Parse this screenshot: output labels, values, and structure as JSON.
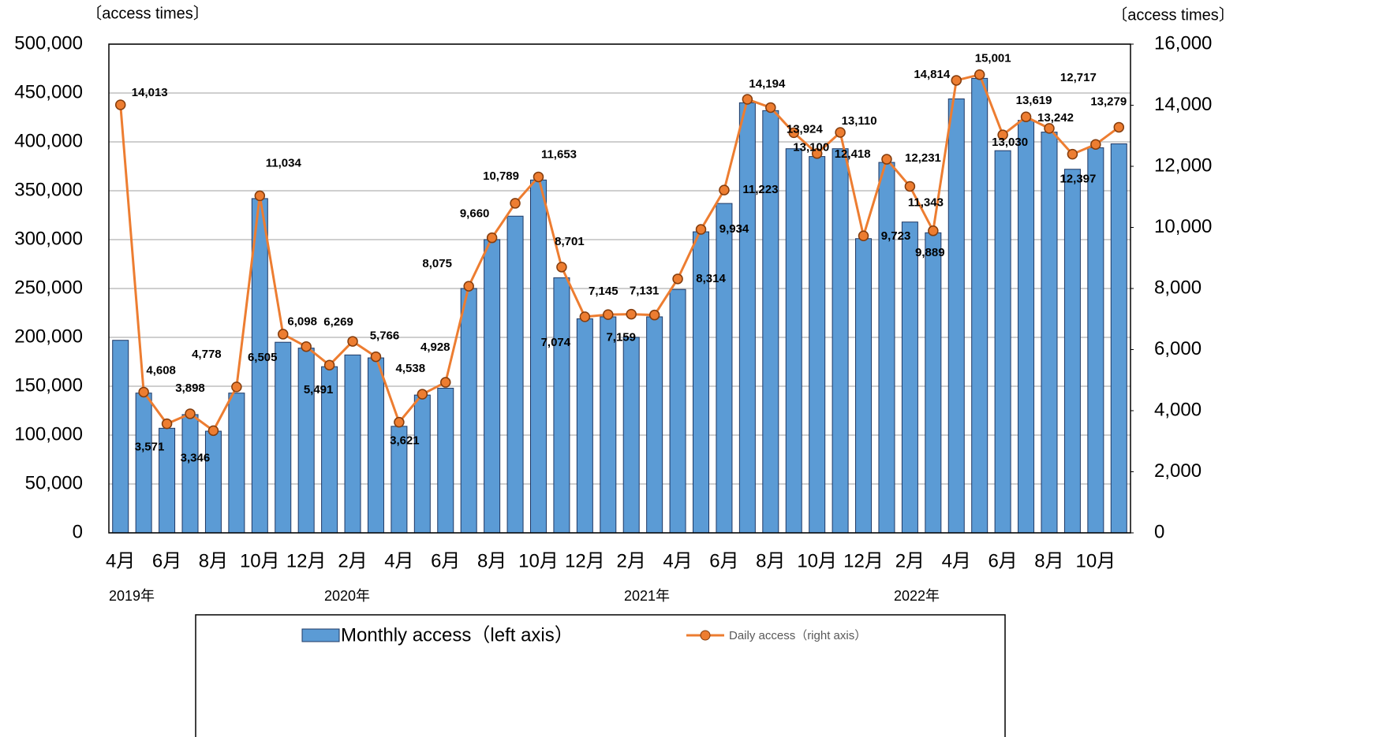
{
  "chart_data": {
    "type": "combo",
    "y_label": "〔access times〕",
    "y2_label": "〔access times〕",
    "categories": [
      "4月",
      null,
      "6月",
      null,
      "8月",
      null,
      "10月",
      null,
      "12月",
      null,
      "2月",
      null,
      "4月",
      null,
      "6月",
      null,
      "8月",
      null,
      "10月",
      null,
      "12月",
      null,
      "2月",
      null,
      "4月",
      null,
      "6月",
      null,
      "8月",
      null,
      "10月",
      null,
      "12月",
      null,
      "2月",
      null,
      "4月",
      null,
      "6月",
      null,
      "8月",
      null,
      "10月",
      null
    ],
    "year_labels": [
      "2019年",
      "2020年",
      "2021年",
      "2022年"
    ],
    "ylim": [
      0,
      500000
    ],
    "yticks": [
      0,
      {
        "value": 50000,
        "label": "50,000"
      },
      {
        "value": 100000,
        "label": "100,000"
      },
      {
        "value": 150000,
        "label": "150,000"
      },
      {
        "value": 200000,
        "label": "200,000"
      },
      {
        "value": 250000,
        "label": "250,000"
      },
      {
        "value": 300000,
        "label": "300,000"
      },
      {
        "value": 350000,
        "label": "350,000"
      },
      {
        "value": 400000,
        "label": "400,000"
      },
      {
        "value": 450000,
        "label": "450,000"
      },
      {
        "value": 500000,
        "label": "500,000"
      }
    ],
    "y2lim": [
      0,
      16000
    ],
    "y2ticks": [
      0,
      {
        "value": 2000,
        "label": "2,000"
      },
      {
        "value": 4000,
        "label": "4,000"
      },
      {
        "value": 6000,
        "label": "6,000"
      },
      {
        "value": 8000,
        "label": "8,000"
      },
      {
        "value": 10000,
        "label": "10,000"
      },
      {
        "value": 12000,
        "label": "12,000"
      },
      {
        "value": 14000,
        "label": "14,000"
      },
      {
        "value": 16000,
        "label": "16,000"
      }
    ],
    "grid": true,
    "series": [
      {
        "name": "Monthly access（left axis）",
        "type": "bar",
        "color": "#5b9bd5",
        "values": [
          197000,
          143000,
          107000,
          121000,
          104000,
          143000,
          342000,
          195000,
          189000,
          170000,
          182000,
          179000,
          109000,
          141000,
          148000,
          250000,
          300000,
          324000,
          361000,
          261000,
          219000,
          221000,
          200000,
          221000,
          249000,
          308000,
          337000,
          440000,
          432000,
          393000,
          385000,
          393000,
          301000,
          379000,
          318000,
          307000,
          444000,
          465000,
          391000,
          422000,
          410000,
          372000,
          394000,
          398000
        ]
      },
      {
        "name": "Daily access（right axis）",
        "type": "line",
        "axis": "y2",
        "color": "#ed7d31",
        "values": [
          14013,
          4608,
          3571,
          3898,
          3346,
          4778,
          11034,
          6505,
          6098,
          5491,
          6269,
          5766,
          3621,
          4538,
          4928,
          8075,
          9660,
          10789,
          11653,
          8701,
          7074,
          7145,
          7159,
          7131,
          8314,
          9934,
          11223,
          14194,
          13924,
          13100,
          12418,
          13110,
          9723,
          12231,
          11343,
          9889,
          14814,
          15001,
          13030,
          13619,
          13242,
          12397,
          12717,
          13279
        ],
        "value_labels": [
          "14,013",
          "4,608",
          "3,571",
          "3,898",
          "3,346",
          "4,778",
          "11,034",
          "6,505",
          "6,098",
          "5,491",
          "6,269",
          "5,766",
          "3,621",
          "4,538",
          "4,928",
          "8,075",
          "9,660",
          "10,789",
          "11,653",
          "8,701",
          "7,074",
          "7,145",
          "7,159",
          "7,131",
          "8,314",
          "9,934",
          "11,223",
          "14,194",
          "13,924",
          "13,100",
          "12,418",
          "13,110",
          "9,723",
          "12,231",
          "11,343",
          "9,889",
          "14,814",
          "15,001",
          "13,030",
          "13,619",
          "13,242",
          "12,397",
          "12,717",
          "13,279"
        ]
      }
    ]
  }
}
